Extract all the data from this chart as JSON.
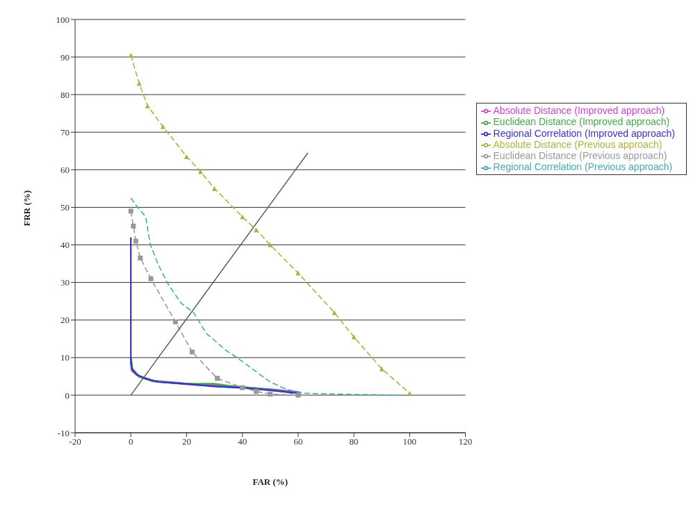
{
  "chart_data": {
    "type": "line",
    "xlabel": "FAR (%)",
    "ylabel": "FRR (%)",
    "xlim": [
      -20,
      120
    ],
    "xticks": [
      -20,
      0,
      20,
      40,
      60,
      80,
      100,
      120
    ],
    "ylim": [
      -10,
      100
    ],
    "yticks": [
      -10,
      0,
      10,
      20,
      30,
      40,
      50,
      60,
      70,
      80,
      90,
      100
    ],
    "grid": "y",
    "legend": "top right",
    "series": [
      {
        "name": "Absolute Distance (Improved approach)",
        "color": "#cc44cc",
        "marker": "none",
        "line_style": "solid",
        "x": [
          0,
          0.5,
          3,
          8,
          20,
          30,
          40,
          50,
          60,
          60
        ],
        "values": [
          9,
          6.5,
          5,
          3.8,
          3,
          2.5,
          2,
          1.5,
          0.8,
          0.2
        ]
      },
      {
        "name": "Euclidean Distance (Improved approach)",
        "color": "#44aa44",
        "marker": "none",
        "line_style": "solid",
        "x": [
          0,
          0.5,
          3,
          8,
          20,
          30,
          35,
          45,
          55,
          58
        ],
        "values": [
          10,
          7,
          5,
          3.7,
          3,
          3,
          2.5,
          1.8,
          1,
          0.5
        ]
      },
      {
        "name": "Regional Correlation (Improved approach)",
        "color": "#3333cc",
        "marker": "none",
        "line_style": "solid",
        "x": [
          0,
          0,
          0.3,
          2,
          5,
          10,
          20,
          30,
          40,
          50,
          60,
          61
        ],
        "values": [
          42,
          10,
          7,
          5.5,
          4.5,
          3.5,
          3,
          2.3,
          2,
          1.3,
          0.5,
          0.2
        ]
      },
      {
        "name": "Absolute Distance (Previous approach)",
        "color": "#b0b040",
        "marker": "triangle",
        "line_style": "dashed",
        "x": [
          0,
          3,
          6,
          11.5,
          20,
          25,
          30,
          40,
          45,
          50,
          60,
          73,
          80,
          90,
          100
        ],
        "values": [
          90.5,
          83,
          77,
          71.5,
          63.5,
          59.5,
          55,
          47.5,
          44,
          40,
          32.5,
          22,
          15.5,
          7,
          0.5
        ]
      },
      {
        "name": "Euclidean Distance (Previous approach)",
        "color": "#999999",
        "marker": "square",
        "line_style": "dashed",
        "x": [
          0,
          0.9,
          1.8,
          3.4,
          7.2,
          16,
          22,
          31,
          40,
          45,
          50,
          60
        ],
        "values": [
          49,
          45,
          41,
          36.5,
          31,
          19.5,
          11.5,
          4.5,
          2,
          1,
          0.3,
          0
        ]
      },
      {
        "name": "Regional Correlation (Previous approach)",
        "color": "#44aaaa",
        "marker": "none",
        "line_style": "dashed",
        "x": [
          0,
          2.4,
          5.3,
          7,
          9.7,
          13,
          18,
          22.5,
          27,
          34,
          39,
          50,
          56,
          62.5,
          80,
          100
        ],
        "values": [
          52.5,
          50,
          47.5,
          40,
          35,
          30,
          24.5,
          22,
          16.5,
          12,
          9.5,
          3.5,
          1.5,
          0.5,
          0.2,
          0
        ]
      },
      {
        "color": "#555555",
        "marker": "none",
        "line_style": "solid",
        "x": [
          0,
          63.5
        ],
        "values": [
          0,
          64.5
        ]
      }
    ]
  }
}
